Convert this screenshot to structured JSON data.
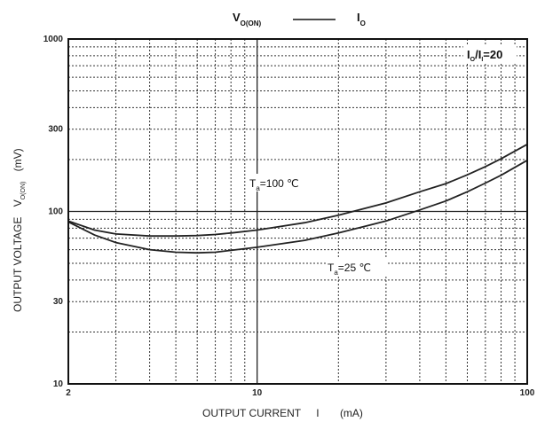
{
  "chart_data": {
    "type": "line",
    "title": {
      "left_main": "V",
      "left_sub": "O(ON)",
      "dash": "———",
      "right_main": "I",
      "right_sub": "O"
    },
    "xlabel": {
      "main": "OUTPUT CURRENT",
      "sym": "I",
      "unit": "(mA)"
    },
    "ylabel": {
      "main": "OUTPUT VOLTAGE",
      "sym": "V",
      "sub": "O(ON)",
      "unit": "(mV)"
    },
    "x_scale": "log",
    "y_scale": "log",
    "xlim": [
      2,
      100
    ],
    "ylim": [
      10,
      1000
    ],
    "x_ticks": [
      {
        "value": 2,
        "label": "2"
      },
      {
        "value": 10,
        "label": "10"
      },
      {
        "value": 100,
        "label": "100"
      }
    ],
    "y_ticks": [
      {
        "value": 10,
        "label": "10"
      },
      {
        "value": 30,
        "label": "30"
      },
      {
        "value": 100,
        "label": "100"
      },
      {
        "value": 300,
        "label": "300"
      },
      {
        "value": 1000,
        "label": "1000"
      }
    ],
    "grid": true,
    "series": [
      {
        "name": "Ta=100 ℃",
        "points": [
          [
            2,
            88
          ],
          [
            2.5,
            78
          ],
          [
            3,
            74
          ],
          [
            4,
            72
          ],
          [
            5,
            72
          ],
          [
            6,
            72.5
          ],
          [
            7,
            73.5
          ],
          [
            8,
            75
          ],
          [
            10,
            78
          ],
          [
            15,
            86
          ],
          [
            20,
            95
          ],
          [
            30,
            112
          ],
          [
            40,
            130
          ],
          [
            50,
            145
          ],
          [
            60,
            163
          ],
          [
            70,
            182
          ],
          [
            80,
            202
          ],
          [
            100,
            245
          ]
        ]
      },
      {
        "name": "Ta=25 ℃",
        "points": [
          [
            2,
            87
          ],
          [
            2.5,
            73
          ],
          [
            3,
            66
          ],
          [
            4,
            60
          ],
          [
            5,
            58
          ],
          [
            6,
            57.5
          ],
          [
            7,
            58
          ],
          [
            8,
            59.5
          ],
          [
            10,
            62
          ],
          [
            15,
            68
          ],
          [
            20,
            75
          ],
          [
            30,
            88
          ],
          [
            40,
            102
          ],
          [
            50,
            115
          ],
          [
            60,
            130
          ],
          [
            70,
            146
          ],
          [
            80,
            162
          ],
          [
            100,
            198
          ]
        ]
      }
    ],
    "annotations": {
      "ratio": {
        "a": "I",
        "a_sub": "O",
        "b": "/I",
        "b_sub": "I",
        "c": "=20"
      },
      "ta100": {
        "a": "T",
        "sub": "a",
        "b": "=100 ℃"
      },
      "ta25": {
        "a": "T",
        "sub": "a",
        "b": "=25 ℃"
      }
    }
  }
}
